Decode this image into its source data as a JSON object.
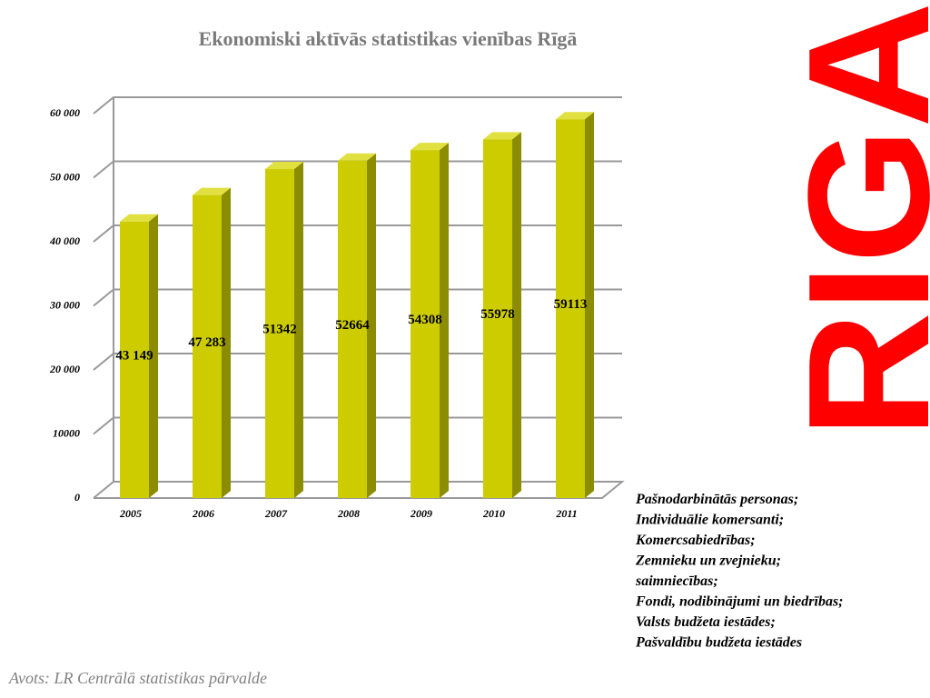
{
  "chart_data": {
    "type": "bar",
    "title": "Ekonomiski aktīvās statistikas vienības Rīgā",
    "categories": [
      "2005",
      "2006",
      "2007",
      "2008",
      "2009",
      "2010",
      "2011"
    ],
    "values": [
      43149,
      47283,
      51342,
      52664,
      54308,
      55978,
      59113
    ],
    "value_labels": [
      "43 149",
      "47 283",
      "51342",
      "52664",
      "54308",
      "55978",
      "59113"
    ],
    "color": "#cccc00",
    "ylim": [
      0,
      60000
    ],
    "yticks": [
      0,
      10000,
      {
        "value": 20000,
        "label": "20 000"
      },
      {
        "value": 30000,
        "label": "30 000"
      },
      {
        "value": 40000,
        "label": "40 000"
      },
      {
        "value": 50000,
        "label": "50 000"
      },
      {
        "value": 60000,
        "label": "60 000"
      }
    ],
    "grid": true,
    "notes": [
      "Pašnodarbinātās personas;",
      "Individuālie komersanti;",
      "Komercsabiedrības;",
      "Zemnieku un zvejnieku;",
      "saimniecības;",
      "Fondi, nodibinājumi un biedrības;",
      "Valsts budžeta iestādes;",
      "Pašvaldību budžeta iestādes"
    ],
    "source": "Avots: LR Centrālā statistikas pārvalde",
    "logo": "RIGA"
  }
}
